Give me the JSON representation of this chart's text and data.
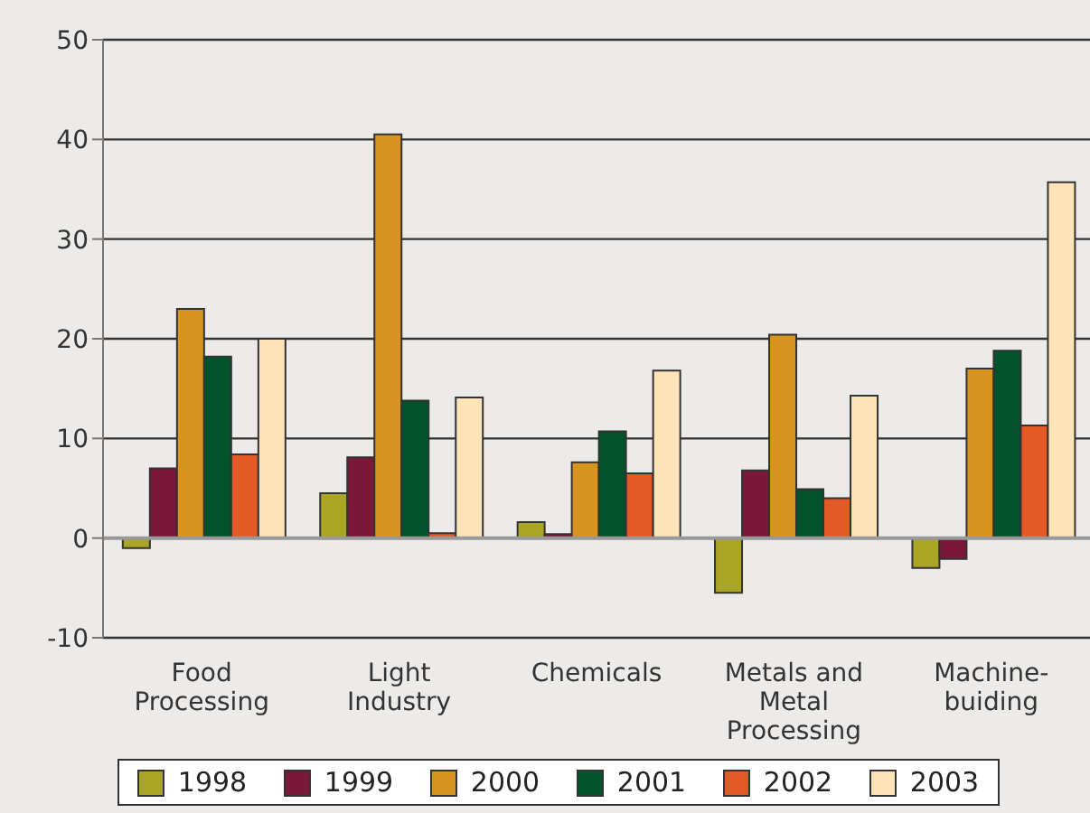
{
  "chart_data": {
    "type": "bar",
    "categories": [
      "Food Processing",
      "Light Industry",
      "Chemicals",
      "Metals and Metal Processing",
      "Machine-buiding"
    ],
    "series": [
      {
        "name": "1998",
        "color": "#aba526",
        "values": [
          -1.0,
          4.5,
          1.6,
          -5.5,
          -3.0
        ]
      },
      {
        "name": "1999",
        "color": "#7a183a",
        "values": [
          7.0,
          8.1,
          0.4,
          6.8,
          -2.1
        ]
      },
      {
        "name": "2000",
        "color": "#d9931f",
        "values": [
          23.0,
          40.5,
          7.6,
          20.4,
          17.0
        ]
      },
      {
        "name": "2001",
        "color": "#00532a",
        "values": [
          18.2,
          13.8,
          10.7,
          4.9,
          18.8
        ]
      },
      {
        "name": "2002",
        "color": "#e35a26",
        "values": [
          8.4,
          0.5,
          6.5,
          4.0,
          11.3
        ]
      },
      {
        "name": "2003",
        "color": "#fde3b8",
        "values": [
          20.0,
          14.1,
          16.8,
          14.3,
          35.7
        ]
      }
    ],
    "ylim": [
      -10,
      50
    ],
    "yticks": [
      -10,
      0,
      10,
      20,
      30,
      40,
      50
    ],
    "grid": "y",
    "legend": "bottom"
  }
}
